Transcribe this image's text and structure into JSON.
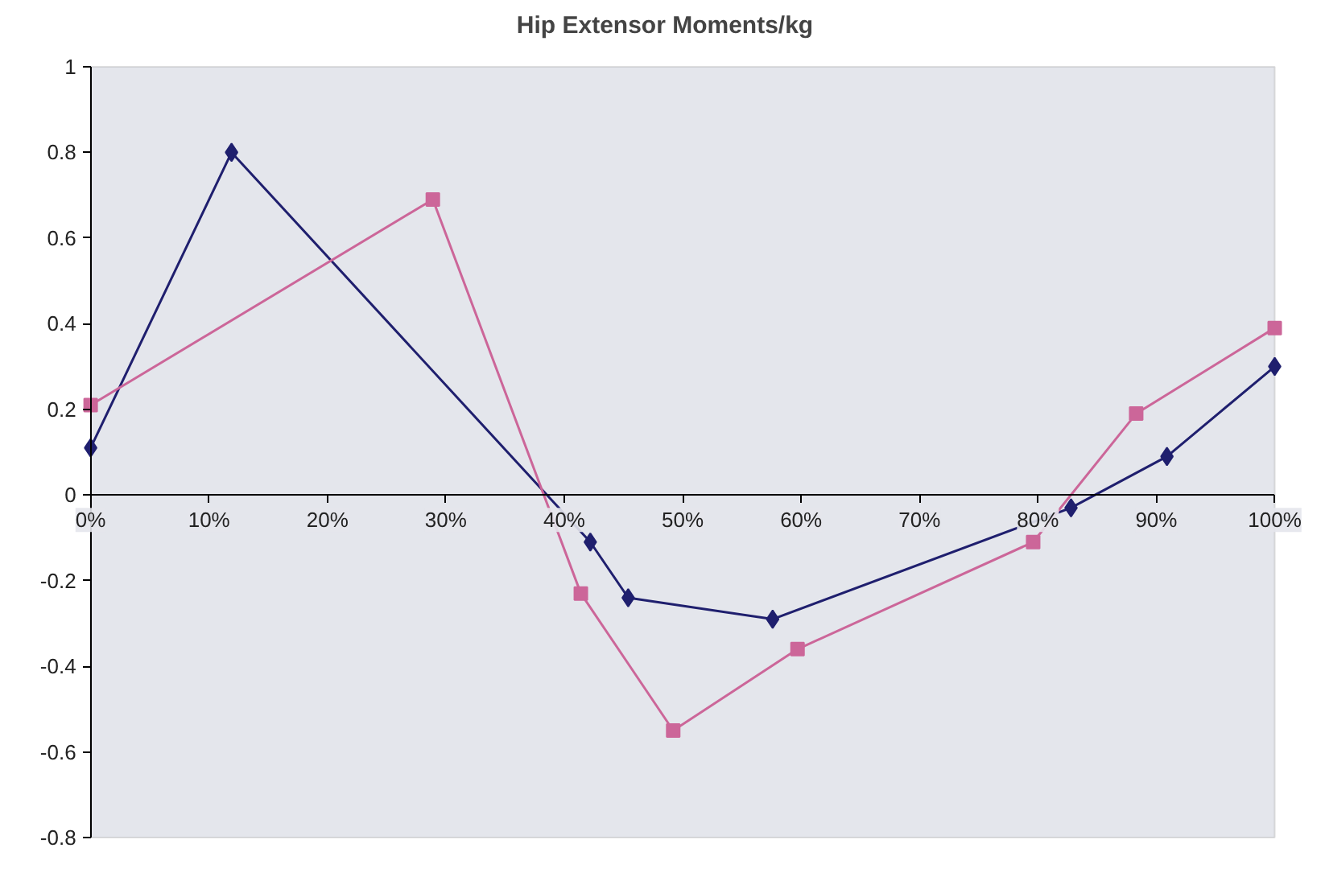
{
  "chart_data": {
    "type": "line",
    "title": "Hip Extensor Moments/kg",
    "xlim": [
      0,
      100
    ],
    "ylim": [
      -0.8,
      1
    ],
    "xticks": [
      {
        "value": 0,
        "label": "0%"
      },
      {
        "value": 10,
        "label": "10%"
      },
      {
        "value": 20,
        "label": "20%"
      },
      {
        "value": 30,
        "label": "30%"
      },
      {
        "value": 40,
        "label": "40%"
      },
      {
        "value": 50,
        "label": "50%"
      },
      {
        "value": 60,
        "label": "60%"
      },
      {
        "value": 70,
        "label": "70%"
      },
      {
        "value": 80,
        "label": "80%"
      },
      {
        "value": 90,
        "label": "90%"
      },
      {
        "value": 100,
        "label": "100%"
      }
    ],
    "yticks": [
      -0.8,
      -0.6,
      -0.4,
      -0.2,
      0,
      0.2,
      0.4,
      0.6,
      0.8,
      1
    ],
    "series": [
      {
        "color": "#1f1f6e",
        "marker": "diamond",
        "x": [
          0,
          11.9,
          42.2,
          45.4,
          57.6,
          82.8,
          90.9,
          100
        ],
        "values": [
          0.11,
          0.8,
          -0.11,
          -0.24,
          -0.29,
          -0.03,
          0.09,
          0.3
        ]
      },
      {
        "color": "#cc6699",
        "marker": "square",
        "x": [
          0,
          28.9,
          41.4,
          49.2,
          59.7,
          79.6,
          88.3,
          100
        ],
        "values": [
          0.21,
          0.69,
          -0.23,
          -0.55,
          -0.36,
          -0.11,
          0.19,
          0.39
        ]
      }
    ]
  }
}
